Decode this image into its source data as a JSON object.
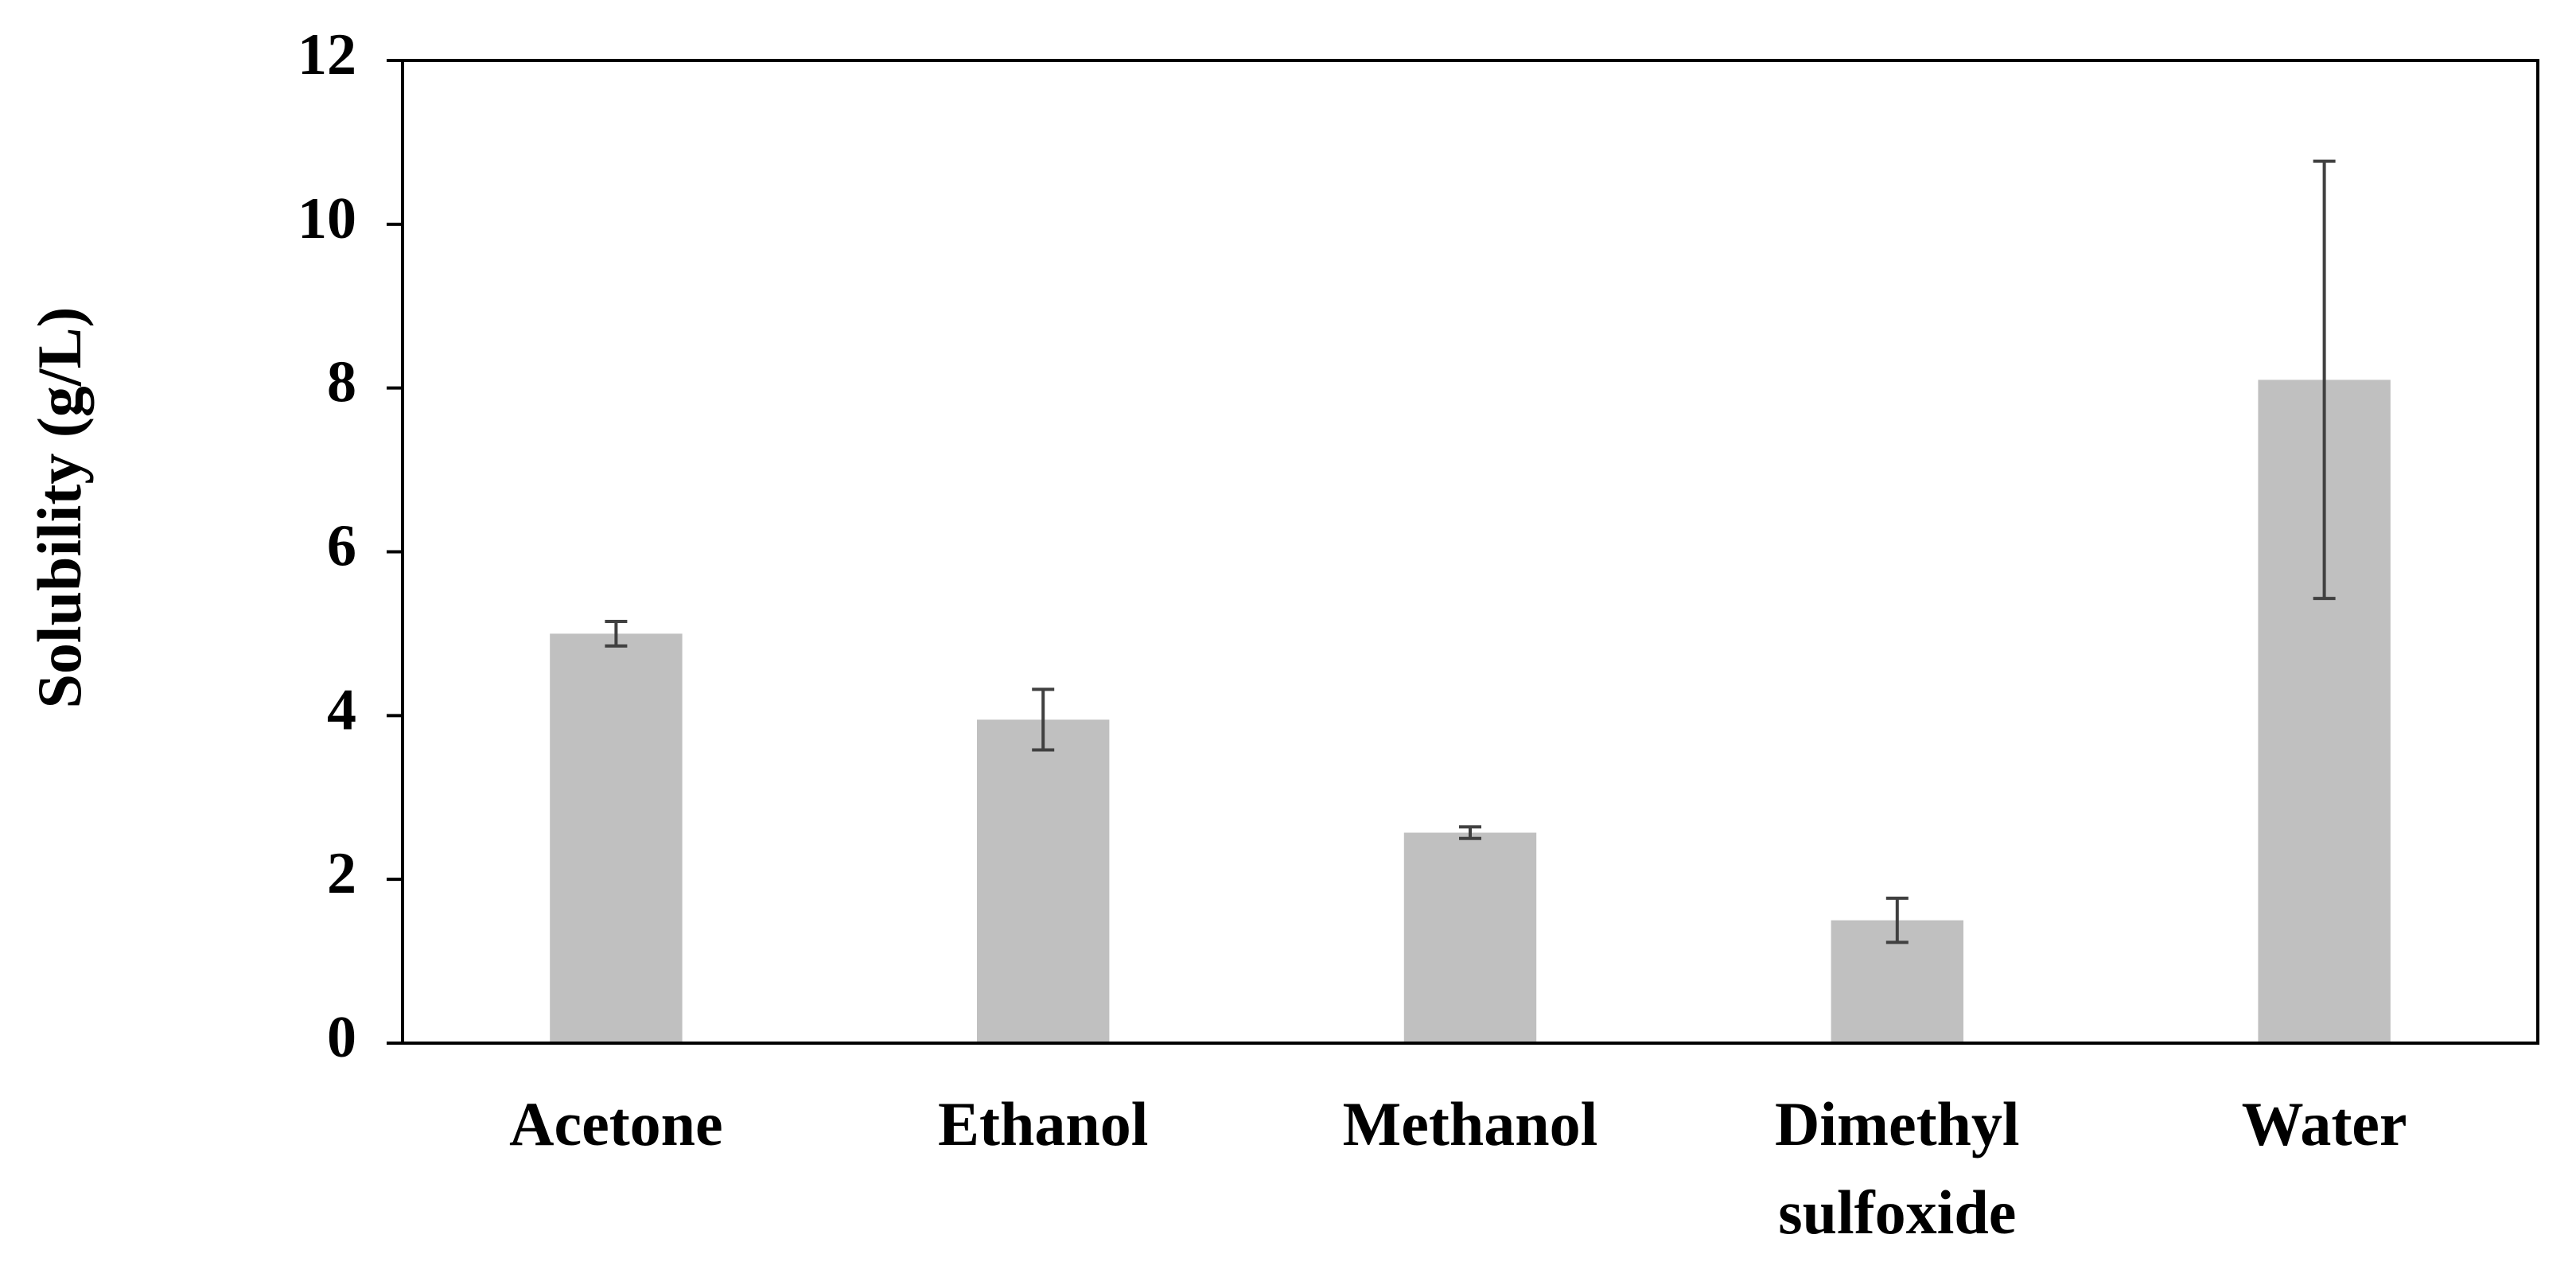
{
  "chart_data": {
    "type": "bar",
    "y_label": "Solubility (g/L)",
    "categories": [
      "Acetone",
      "Ethanol",
      "Methanol",
      "Dimethyl\nsulfoxide",
      "Water"
    ],
    "values": [
      5.0,
      3.95,
      2.57,
      1.5,
      8.1
    ],
    "errors": [
      0.15,
      0.37,
      0.07,
      0.27,
      2.67
    ],
    "color": "#c0c0c0",
    "error_color": "#404040",
    "ylim": [
      0,
      12
    ],
    "yticks": [
      0,
      2,
      4,
      6,
      8,
      10,
      12
    ],
    "grid": false
  }
}
